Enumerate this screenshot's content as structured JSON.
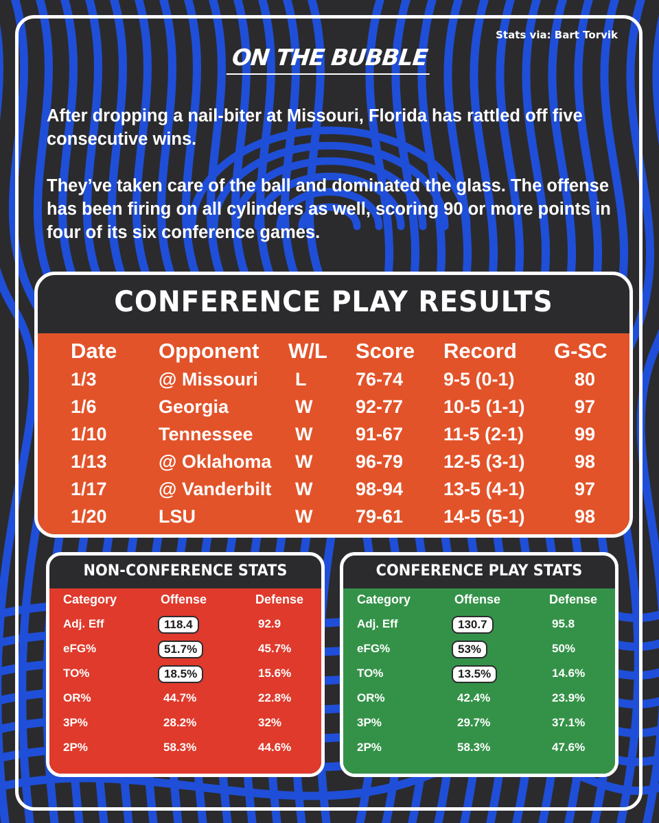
{
  "colors": {
    "background": "#2b2b2e",
    "swirl": "#1f4fd8",
    "results_orange": "#e2532a",
    "nonconf_red": "#df3a2c",
    "conf_green": "#349248",
    "text": "#ffffff"
  },
  "source": "Stats via: Bart Torvik",
  "brand": "ON THE BUBBLE",
  "intro": {
    "p1": "After dropping a nail-biter at Missouri, Florida has rattled off five consecutive wins.",
    "p2": "They’ve taken care of the ball and dominated the glass. The offense has been firing on all cylinders as well, scoring 90 or more points in four of its six conference games."
  },
  "results": {
    "title": "CONFERENCE PLAY RESULTS",
    "headers": [
      "Date",
      "Opponent",
      "W/L",
      "Score",
      "Record",
      "G-SC"
    ],
    "rows": [
      [
        "1/3",
        "@ Missouri",
        "L",
        "76-74",
        "9-5 (0-1)",
        "80"
      ],
      [
        "1/6",
        "Georgia",
        "W",
        "92-77",
        "10-5 (1-1)",
        "97"
      ],
      [
        "1/10",
        "Tennessee",
        "W",
        "91-67",
        "11-5 (2-1)",
        "99"
      ],
      [
        "1/13",
        "@ Oklahoma",
        "W",
        "96-79",
        "12-5 (3-1)",
        "98"
      ],
      [
        "1/17",
        "@ Vanderbilt",
        "W",
        "98-94",
        "13-5 (4-1)",
        "97"
      ],
      [
        "1/20",
        "LSU",
        "W",
        "79-61",
        "14-5 (5-1)",
        "98"
      ]
    ]
  },
  "nonconf": {
    "title": "NON-CONFERENCE STATS",
    "headers": [
      "Category",
      "Offense",
      "Defense"
    ],
    "rows": [
      [
        "Adj. Eff",
        "118.4",
        "92.9"
      ],
      [
        "eFG%",
        "51.7%",
        "45.7%"
      ],
      [
        "TO%",
        "18.5%",
        "15.6%"
      ],
      [
        "OR%",
        "44.7%",
        "22.8%"
      ],
      [
        "3P%",
        "28.2%",
        "32%"
      ],
      [
        "2P%",
        "58.3%",
        "44.6%"
      ]
    ]
  },
  "conf": {
    "title": "CONFERENCE PLAY STATS",
    "headers": [
      "Category",
      "Offense",
      "Defense"
    ],
    "rows": [
      [
        "Adj. Eff",
        "130.7",
        "95.8"
      ],
      [
        "eFG%",
        "53%",
        "50%"
      ],
      [
        "TO%",
        "13.5%",
        "14.6%"
      ],
      [
        "OR%",
        "42.4%",
        "23.9%"
      ],
      [
        "3P%",
        "29.7%",
        "37.1%"
      ],
      [
        "2P%",
        "58.3%",
        "47.6%"
      ]
    ]
  }
}
